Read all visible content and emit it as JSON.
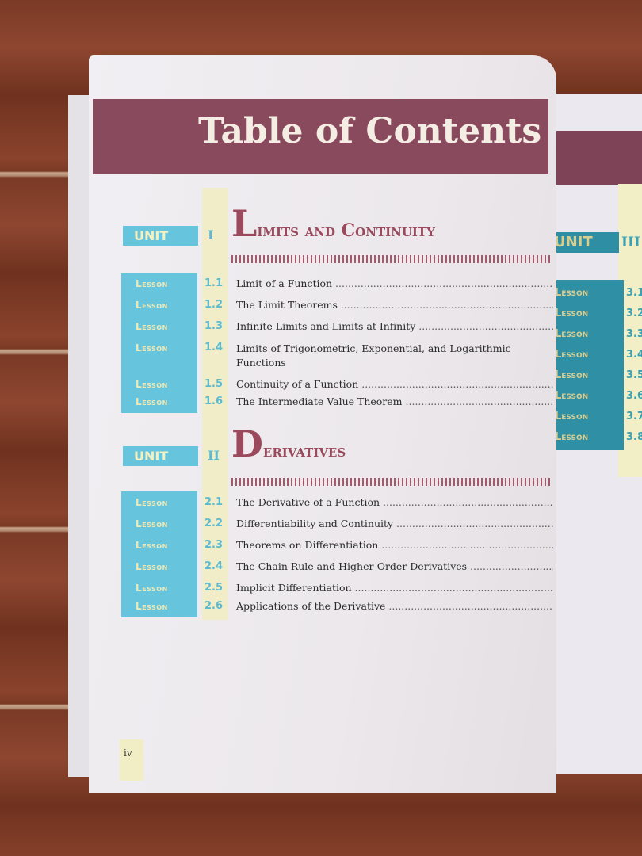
{
  "title": "Table of Contents",
  "lesson_label": "Lesson",
  "unit_label": "UNIT",
  "units": [
    {
      "number": "I",
      "title_initial": "L",
      "title_rest": "imits and Continuity",
      "lessons": [
        {
          "number": "1.1",
          "title": "Limit of a Function"
        },
        {
          "number": "1.2",
          "title": "The Limit Theorems"
        },
        {
          "number": "1.3",
          "title": "Infinite Limits and Limits at Infinity"
        },
        {
          "number": "1.4",
          "title": "Limits of Trigonometric, Exponential, and Logarithmic Functions"
        },
        {
          "number": "1.5",
          "title": "Continuity of a Function"
        },
        {
          "number": "1.6",
          "title": "The Intermediate Value Theorem"
        }
      ]
    },
    {
      "number": "II",
      "title_initial": "D",
      "title_rest": "erivatives",
      "lessons": [
        {
          "number": "2.1",
          "title": "The Derivative of a Function"
        },
        {
          "number": "2.2",
          "title": "Differentiability and Continuity"
        },
        {
          "number": "2.3",
          "title": "Theorems on Differentiation"
        },
        {
          "number": "2.4",
          "title": "The Chain Rule and Higher-Order Derivatives"
        },
        {
          "number": "2.5",
          "title": "Implicit Differentiation"
        },
        {
          "number": "2.6",
          "title": "Applications of the Derivative"
        }
      ]
    }
  ],
  "right_page": {
    "unit_number": "III",
    "lesson_numbers": [
      "3.1",
      "3.2",
      "3.3",
      "3.4",
      "3.5",
      "3.6",
      "3.7",
      "3.8"
    ]
  },
  "page_number": "iv",
  "colors": {
    "band": "#8a4a5e",
    "lesson_box": "#66c4dc",
    "yellow_column": "#f1edc8",
    "unit_title": "#9a4a5c"
  }
}
